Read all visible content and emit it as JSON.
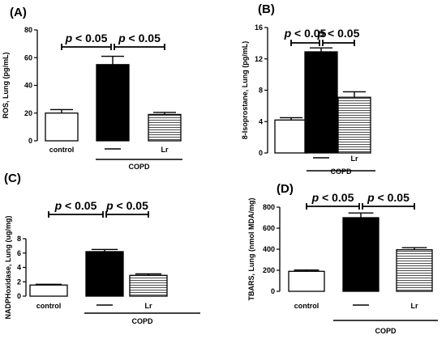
{
  "chart_data": [
    {
      "panel": "(A)",
      "type": "bar",
      "ylabel": "ROS, Lung (pg/mL)",
      "categories": [
        "control",
        "—",
        "Lr"
      ],
      "group_label": "COPD",
      "values": [
        20,
        55,
        19
      ],
      "errors": [
        2.5,
        6,
        1.5
      ],
      "ylim": [
        0,
        80
      ],
      "yticks": [
        0,
        20,
        40,
        60,
        80
      ],
      "significance": [
        {
          "from": 0,
          "to": 1,
          "text": "p < 0.05"
        },
        {
          "from": 1,
          "to": 2,
          "text": "p < 0.05"
        }
      ],
      "fills": [
        "white",
        "black",
        "stripes"
      ]
    },
    {
      "panel": "(B)",
      "type": "bar",
      "ylabel": "8-Isoprostane, Lung (pg/mL)",
      "categories": [
        "",
        "—",
        "Lr"
      ],
      "group_label": "COPD",
      "values": [
        4.2,
        12.9,
        7.1
      ],
      "errors": [
        0.3,
        0.5,
        0.7
      ],
      "ylim": [
        0,
        16
      ],
      "yticks": [
        0,
        4,
        8,
        12,
        16
      ],
      "significance": [
        {
          "from": 0,
          "to": 1,
          "text": "p < 0.05"
        },
        {
          "from": 1,
          "to": 2,
          "text": "p < 0.05"
        }
      ],
      "fills": [
        "white",
        "black",
        "stripes"
      ]
    },
    {
      "panel": "(C)",
      "type": "bar",
      "ylabel": "NADPHoxidase, Lung (ug/mg)",
      "categories": [
        "control",
        "—",
        "Lr"
      ],
      "group_label": "COPD",
      "values": [
        1.55,
        6.2,
        2.9
      ],
      "errors": [
        0.1,
        0.3,
        0.2
      ],
      "ylim": [
        0,
        8
      ],
      "yticks": [
        0,
        2,
        4,
        6,
        8
      ],
      "significance": [
        {
          "from": 0,
          "to": 1,
          "text": "p < 0.05"
        },
        {
          "from": 1,
          "to": 2,
          "text": "p < 0.05"
        }
      ],
      "fills": [
        "white",
        "black",
        "stripes"
      ]
    },
    {
      "panel": "(D)",
      "type": "bar",
      "ylabel": "TBARS, Lung (nmol MDA/mg)",
      "categories": [
        "control",
        "—",
        "Lr"
      ],
      "group_label": "COPD",
      "values": [
        190,
        700,
        395
      ],
      "errors": [
        12,
        45,
        20
      ],
      "ylim": [
        0,
        800
      ],
      "yticks": [
        0,
        200,
        400,
        600,
        800
      ],
      "significance": [
        {
          "from": 0,
          "to": 1,
          "text": "p < 0.05"
        },
        {
          "from": 1,
          "to": 2,
          "text": "p < 0.05"
        }
      ],
      "fills": [
        "white",
        "black",
        "stripes"
      ]
    }
  ]
}
